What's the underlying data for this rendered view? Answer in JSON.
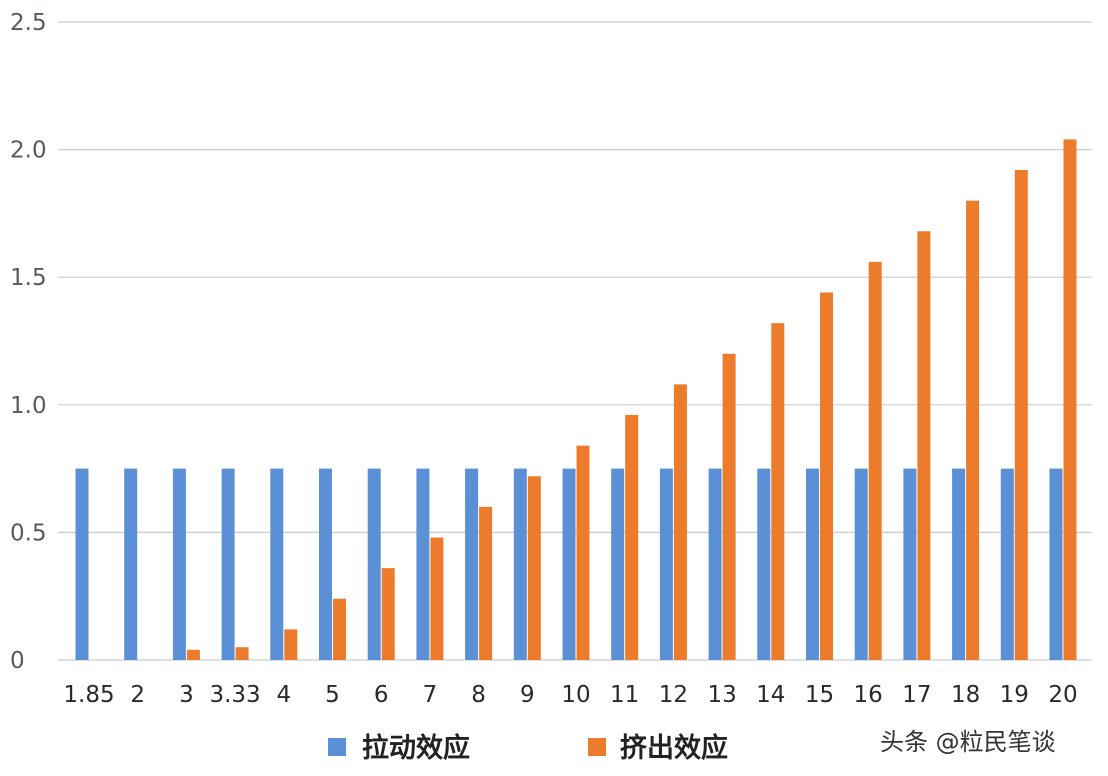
{
  "chart_data": {
    "type": "bar",
    "categories": [
      "1.85",
      "2",
      "3",
      "3.33",
      "4",
      "5",
      "6",
      "7",
      "8",
      "9",
      "10",
      "11",
      "12",
      "13",
      "14",
      "15",
      "16",
      "17",
      "18",
      "19",
      "20"
    ],
    "series": [
      {
        "name": "拉动效应",
        "color": "#5b8fd6",
        "values": [
          0.75,
          0.75,
          0.75,
          0.75,
          0.75,
          0.75,
          0.75,
          0.75,
          0.75,
          0.75,
          0.75,
          0.75,
          0.75,
          0.75,
          0.75,
          0.75,
          0.75,
          0.75,
          0.75,
          0.75,
          0.75
        ]
      },
      {
        "name": "挤出效应",
        "color": "#ec7b2c",
        "values": [
          0,
          0,
          0.04,
          0.05,
          0.12,
          0.24,
          0.36,
          0.48,
          0.6,
          0.72,
          0.84,
          0.96,
          1.08,
          1.2,
          1.32,
          1.44,
          1.56,
          1.68,
          1.8,
          1.92,
          2.04
        ]
      }
    ],
    "ylim": [
      0,
      2.5
    ],
    "yticks": [
      "0",
      "0.5",
      "1.0",
      "1.5",
      "2.0",
      "2.5"
    ],
    "grid": true,
    "legend_position": "bottom"
  },
  "watermark": "头条 @粒民笔谈"
}
